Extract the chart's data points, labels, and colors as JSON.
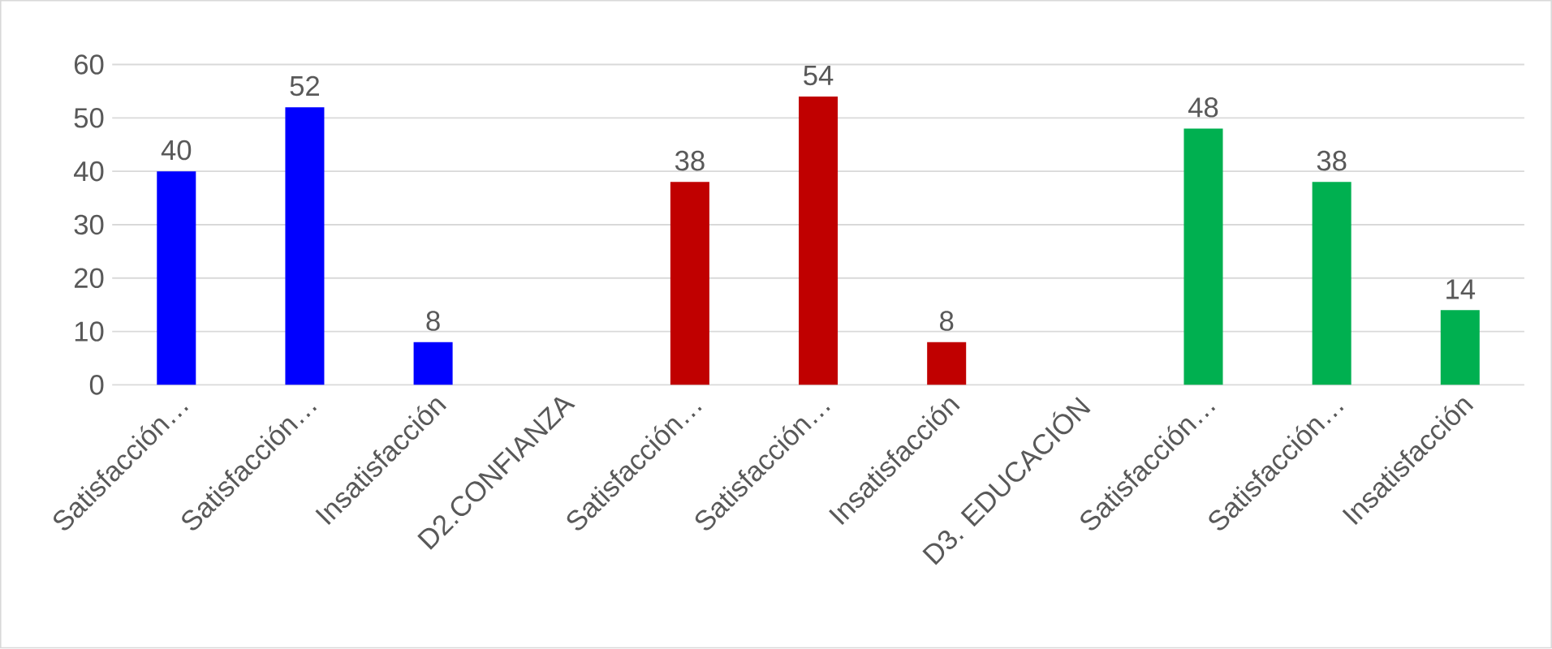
{
  "chart_data": {
    "type": "bar",
    "categories": [
      "Satisfacción…",
      "Satisfacción…",
      "Insatisfacción",
      "D2.CONFIANZA",
      "Satisfacción…",
      "Satisfacción…",
      "Insatisfacción",
      "D3. EDUCACIÓN",
      "Satisfacción…",
      "Satisfacción…",
      "Insatisfacción"
    ],
    "values": [
      40,
      52,
      8,
      null,
      38,
      54,
      8,
      null,
      48,
      38,
      14
    ],
    "colors": [
      "#0000ff",
      "#0000ff",
      "#0000ff",
      null,
      "#c00000",
      "#c00000",
      "#c00000",
      null,
      "#00b050",
      "#00b050",
      "#00b050"
    ],
    "ylim": [
      0,
      60
    ],
    "yticks": [
      0,
      10,
      20,
      30,
      40,
      50,
      60
    ],
    "grid": "y",
    "data_labels": true
  }
}
